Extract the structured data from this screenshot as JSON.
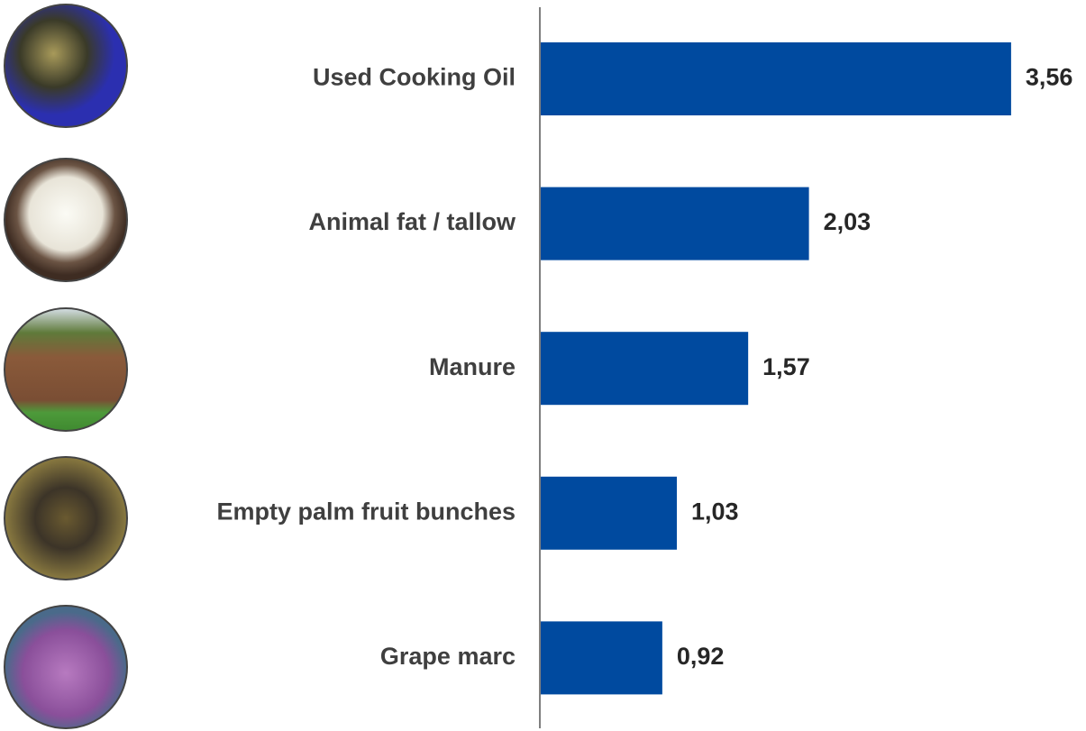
{
  "chart_data": {
    "type": "bar",
    "orientation": "horizontal",
    "categories": [
      "Used Cooking Oil",
      "Animal fat / tallow",
      "Manure",
      "Empty palm fruit bunches",
      "Grape marc"
    ],
    "values": [
      3.56,
      2.03,
      1.57,
      1.03,
      0.92
    ],
    "value_labels": [
      "3,56",
      "2,03",
      "1,57",
      "1,03",
      "0,92"
    ],
    "color": "#004a9f"
  }
}
